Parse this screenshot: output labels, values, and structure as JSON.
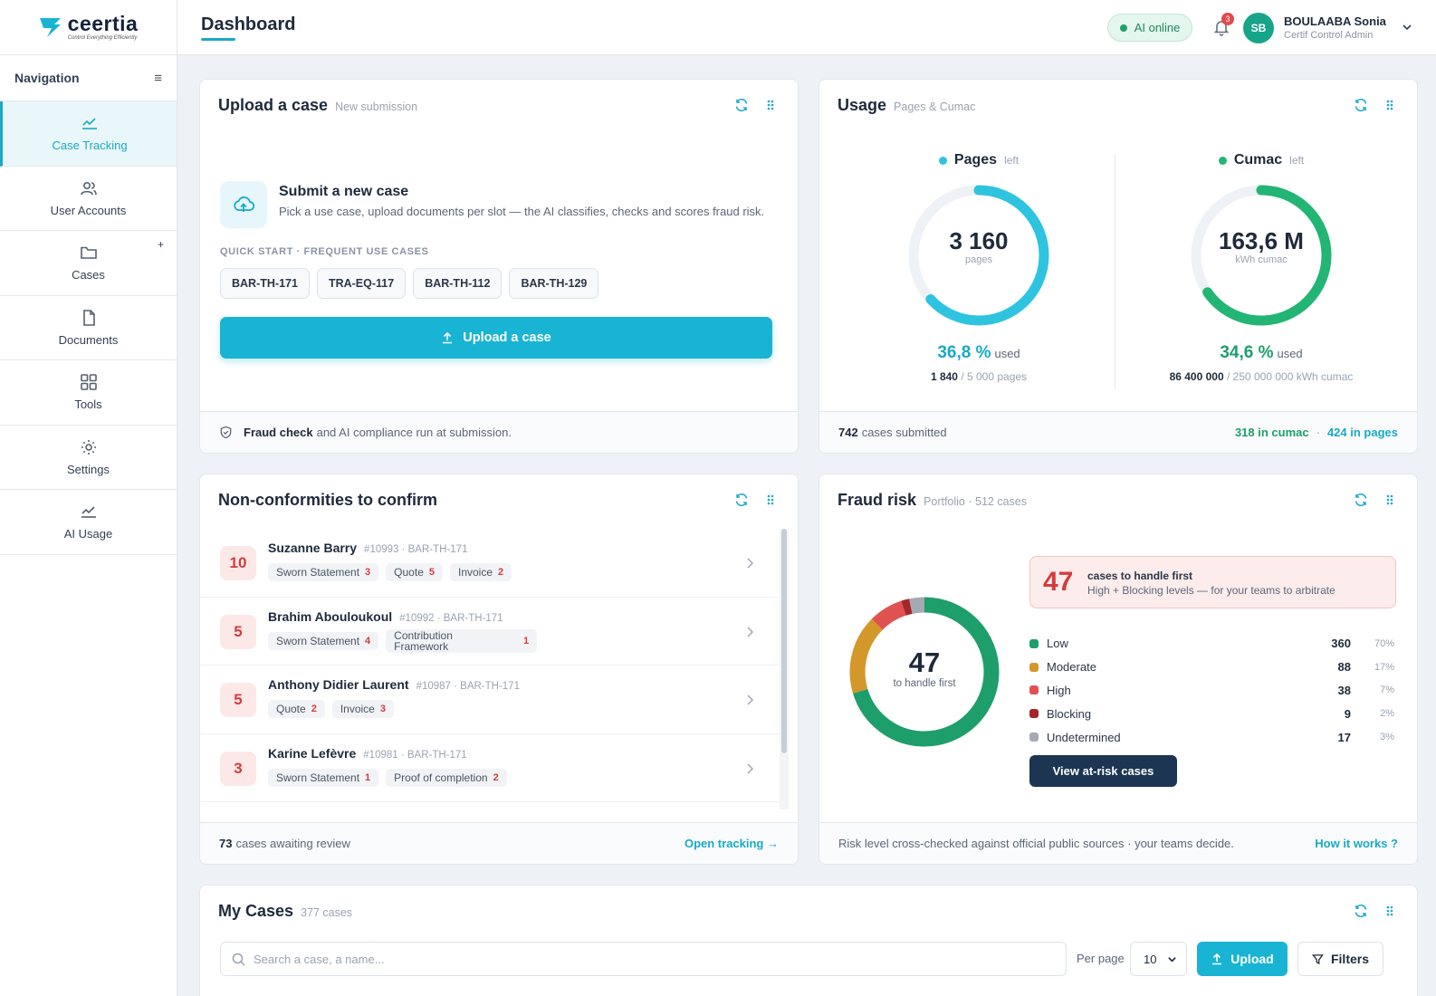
{
  "brand": {
    "name": "ceertia",
    "tagline": "Control Everything Efficiently"
  },
  "sidebar": {
    "title": "Navigation",
    "items": [
      {
        "label": "Case Tracking",
        "icon": "chart-line-icon",
        "active": true
      },
      {
        "label": "User Accounts",
        "icon": "users-icon"
      },
      {
        "label": "Cases",
        "icon": "folder-icon"
      },
      {
        "label": "Documents",
        "icon": "document-icon"
      },
      {
        "label": "Tools",
        "icon": "grid-icon"
      },
      {
        "label": "Settings",
        "icon": "gear-icon"
      },
      {
        "label": "AI Usage",
        "icon": "chart-line-icon"
      }
    ],
    "cases_add": "+"
  },
  "header": {
    "title": "Dashboard",
    "ai_status": "AI online",
    "notifications": "3",
    "user": {
      "initials": "SB",
      "name": "BOULAABA Sonia",
      "role": "Certif Control Admin"
    }
  },
  "upload_card": {
    "title": "Upload a case",
    "subtitle": "New submission",
    "submit_title": "Submit a new case",
    "submit_desc": "Pick a use case, upload documents per slot — the AI classifies, checks and scores fraud risk.",
    "quick_label": "QUICK START · FREQUENT USE CASES",
    "quick_chips": [
      "BAR-TH-171",
      "TRA-EQ-117",
      "BAR-TH-112",
      "BAR-TH-129"
    ],
    "button": "Upload a case",
    "footer_bold": "Fraud check",
    "footer_rest": "and AI compliance run at submission."
  },
  "usage_card": {
    "title": "Usage",
    "subtitle": "Pages & Cumac",
    "pages": {
      "label": "Pages",
      "left": "left",
      "value": "3 160",
      "unit": "pages",
      "pct": "36,8 %",
      "used": "used",
      "used_amount": "1 840",
      "total": "/ 5 000 pages",
      "fraction": 0.368,
      "color": "#2ec4e0"
    },
    "cumac": {
      "label": "Cumac",
      "left": "left",
      "value": "163,6 M",
      "unit": "kWh cumac",
      "pct": "34,6 %",
      "used": "used",
      "used_amount": "86 400 000",
      "total": "/ 250 000 000 kWh cumac",
      "fraction": 0.346,
      "color": "#22b573"
    },
    "footer_count": "742",
    "footer_text": "cases submitted",
    "footer_cumac": "318 in cumac",
    "footer_sep": "·",
    "footer_pages": "424 in pages"
  },
  "nc_card": {
    "title": "Non-conformities to confirm",
    "rows": [
      {
        "count": "10",
        "name": "Suzanne Barry",
        "ref": "#10993 · BAR-TH-171",
        "tags": [
          {
            "label": "Sworn Statement",
            "n": "3"
          },
          {
            "label": "Quote",
            "n": "5"
          },
          {
            "label": "Invoice",
            "n": "2"
          }
        ]
      },
      {
        "count": "5",
        "name": "Brahim Abouloukoul",
        "ref": "#10992 · BAR-TH-171",
        "tags": [
          {
            "label": "Sworn Statement",
            "n": "4"
          },
          {
            "label": "Contribution Framework",
            "n": "1"
          }
        ]
      },
      {
        "count": "5",
        "name": "Anthony Didier Laurent",
        "ref": "#10987 · BAR-TH-171",
        "tags": [
          {
            "label": "Quote",
            "n": "2"
          },
          {
            "label": "Invoice",
            "n": "3"
          }
        ]
      },
      {
        "count": "3",
        "name": "Karine Lefèvre",
        "ref": "#10981 · BAR-TH-171",
        "tags": [
          {
            "label": "Sworn Statement",
            "n": "1"
          },
          {
            "label": "Proof of completion",
            "n": "2"
          }
        ]
      }
    ],
    "footer_count": "73",
    "footer_text": "cases awaiting review",
    "footer_link": "Open tracking →"
  },
  "fraud_card": {
    "title": "Fraud risk",
    "subtitle": "Portfolio · 512 cases",
    "center_value": "47",
    "center_label": "to handle first",
    "alert_value": "47",
    "alert_title": "cases to handle first",
    "alert_desc": "High + Blocking levels — for your teams to arbitrate",
    "button": "View at-risk cases",
    "footer_text": "Risk level cross-checked against official public sources · your teams decide.",
    "footer_link": "How it works ?"
  },
  "chart_data": {
    "type": "pie",
    "categories": [
      "Low",
      "Moderate",
      "High",
      "Blocking",
      "Undetermined"
    ],
    "values": [
      360,
      88,
      38,
      9,
      17
    ],
    "percent_labels": [
      "70%",
      "17%",
      "7%",
      "2%",
      "3%"
    ],
    "colors": [
      "#1e9e6a",
      "#d4972a",
      "#e05252",
      "#a52626",
      "#a3aab5"
    ]
  },
  "cases_card": {
    "title": "My Cases",
    "subtitle": "377 cases",
    "search_placeholder": "Search a case, a name...",
    "per_page_label": "Per page",
    "per_page_value": "10",
    "upload_button": "Upload",
    "filters_button": "Filters"
  }
}
